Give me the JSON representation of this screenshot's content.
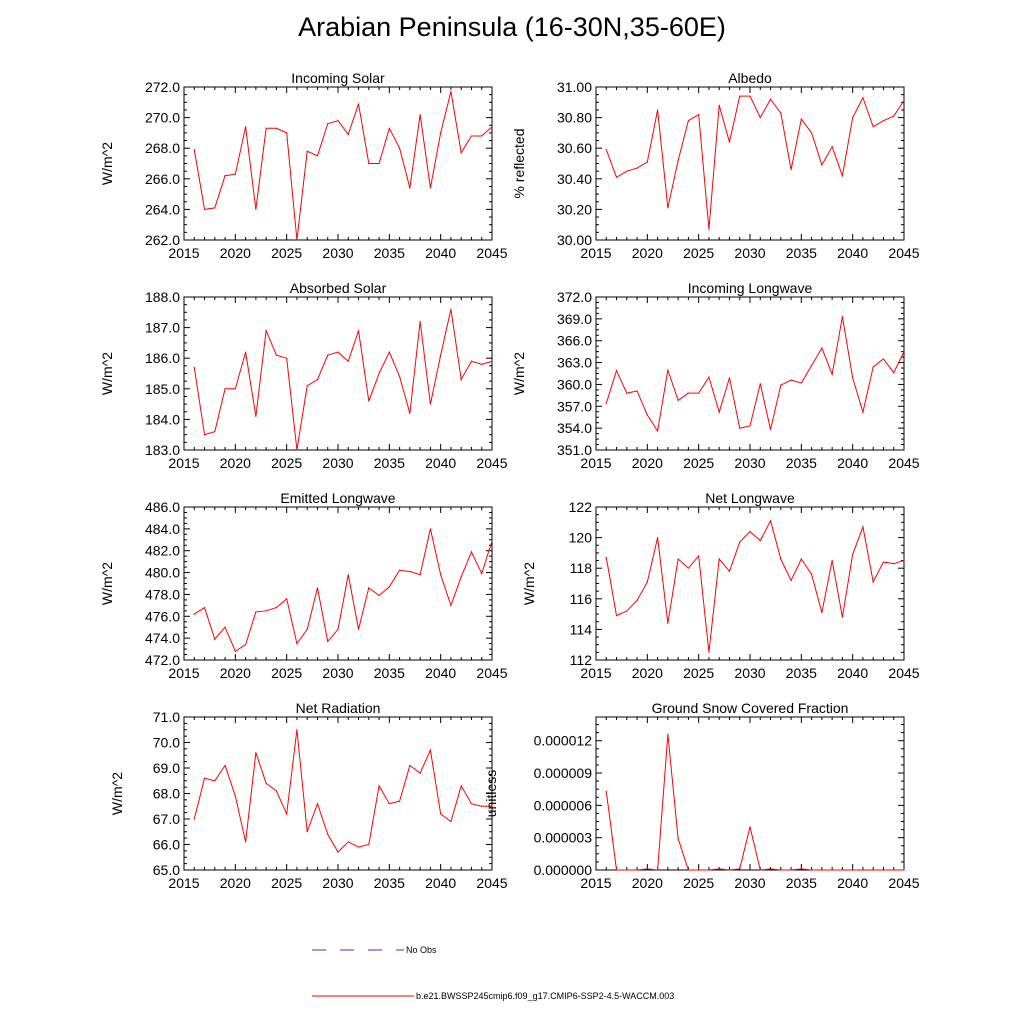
{
  "title": "Arabian Peninsula (16-30N,35-60E)",
  "colors": {
    "model": "#ff0000",
    "obs": "#3333cc",
    "axis": "#000000"
  },
  "legend": {
    "obs_label": "No Obs",
    "model_label": "b.e21.BWSSP245cmip6.f09_g17.CMIP6-SSP2-4.5-WACCM.003"
  },
  "chart_data": [
    {
      "type": "line",
      "title": "Incoming Solar",
      "xlabel": "",
      "ylabel": "W/m^2",
      "xlim": [
        2015,
        2045
      ],
      "ylim": [
        262,
        272
      ],
      "xticks": [
        2015,
        2020,
        2025,
        2030,
        2035,
        2040,
        2045
      ],
      "yticks": [
        262,
        264,
        266,
        268,
        270,
        272
      ],
      "ytick_labels": [
        "262.0",
        "264.0",
        "266.0",
        "268.0",
        "270.0",
        "272.0"
      ],
      "x": [
        2016,
        2017,
        2018,
        2019,
        2020,
        2021,
        2022,
        2023,
        2024,
        2025,
        2026,
        2027,
        2028,
        2029,
        2030,
        2031,
        2032,
        2033,
        2034,
        2035,
        2036,
        2037,
        2038,
        2039,
        2040,
        2041,
        2042,
        2043,
        2044,
        2045
      ],
      "series": [
        {
          "name": "b.e21.BWSSP245cmip6.f09_g17.CMIP6-SSP2-4.5-WACCM.003",
          "values": [
            267.9,
            264.0,
            264.1,
            266.2,
            266.3,
            269.4,
            264.0,
            269.3,
            269.3,
            269.0,
            262.0,
            267.8,
            267.5,
            269.6,
            269.8,
            268.9,
            270.9,
            267.0,
            267.0,
            269.3,
            268.0,
            265.4,
            270.2,
            265.4,
            269.0,
            271.7,
            267.7,
            268.8,
            268.8,
            269.4
          ]
        }
      ]
    },
    {
      "type": "line",
      "title": "Albedo",
      "xlabel": "",
      "ylabel": "% reflected",
      "xlim": [
        2015,
        2045
      ],
      "ylim": [
        30.0,
        31.0
      ],
      "xticks": [
        2015,
        2020,
        2025,
        2030,
        2035,
        2040,
        2045
      ],
      "yticks": [
        30.0,
        30.2,
        30.4,
        30.6,
        30.8,
        31.0
      ],
      "ytick_labels": [
        "30.00",
        "30.20",
        "30.40",
        "30.60",
        "30.80",
        "31.00"
      ],
      "x": [
        2016,
        2017,
        2018,
        2019,
        2020,
        2021,
        2022,
        2023,
        2024,
        2025,
        2026,
        2027,
        2028,
        2029,
        2030,
        2031,
        2032,
        2033,
        2034,
        2035,
        2036,
        2037,
        2038,
        2039,
        2040,
        2041,
        2042,
        2043,
        2044,
        2045
      ],
      "series": [
        {
          "name": "b.e21.BWSSP245cmip6.f09_g17.CMIP6-SSP2-4.5-WACCM.003",
          "values": [
            30.59,
            30.41,
            30.45,
            30.47,
            30.51,
            30.85,
            30.21,
            30.52,
            30.78,
            30.82,
            30.07,
            30.88,
            30.64,
            30.94,
            30.94,
            30.8,
            30.92,
            30.83,
            30.46,
            30.79,
            30.7,
            30.49,
            30.61,
            30.42,
            30.8,
            30.93,
            30.74,
            30.78,
            30.81,
            30.91
          ]
        }
      ]
    },
    {
      "type": "line",
      "title": "Absorbed Solar",
      "xlabel": "",
      "ylabel": "W/m^2",
      "xlim": [
        2015,
        2045
      ],
      "ylim": [
        183,
        188
      ],
      "xticks": [
        2015,
        2020,
        2025,
        2030,
        2035,
        2040,
        2045
      ],
      "yticks": [
        183,
        184,
        185,
        186,
        187,
        188
      ],
      "ytick_labels": [
        "183.0",
        "184.0",
        "185.0",
        "186.0",
        "187.0",
        "188.0"
      ],
      "x": [
        2016,
        2017,
        2018,
        2019,
        2020,
        2021,
        2022,
        2023,
        2024,
        2025,
        2026,
        2027,
        2028,
        2029,
        2030,
        2031,
        2032,
        2033,
        2034,
        2035,
        2036,
        2037,
        2038,
        2039,
        2040,
        2041,
        2042,
        2043,
        2044,
        2045
      ],
      "series": [
        {
          "name": "b.e21.BWSSP245cmip6.f09_g17.CMIP6-SSP2-4.5-WACCM.003",
          "values": [
            185.7,
            183.5,
            183.6,
            185.0,
            185.0,
            186.2,
            184.1,
            186.9,
            186.1,
            186.0,
            183.0,
            185.1,
            185.3,
            186.1,
            186.2,
            185.9,
            186.9,
            184.6,
            185.5,
            186.2,
            185.4,
            184.2,
            187.2,
            184.5,
            186.1,
            187.6,
            185.3,
            185.9,
            185.8,
            185.9
          ]
        }
      ]
    },
    {
      "type": "line",
      "title": "Incoming Longwave",
      "xlabel": "",
      "ylabel": "W/m^2",
      "xlim": [
        2015,
        2045
      ],
      "ylim": [
        351,
        372
      ],
      "xticks": [
        2015,
        2020,
        2025,
        2030,
        2035,
        2040,
        2045
      ],
      "yticks": [
        351,
        354,
        357,
        360,
        363,
        366,
        369,
        372
      ],
      "ytick_labels": [
        "351.0",
        "354.0",
        "357.0",
        "360.0",
        "363.0",
        "366.0",
        "369.0",
        "372.0"
      ],
      "x": [
        2016,
        2017,
        2018,
        2019,
        2020,
        2021,
        2022,
        2023,
        2024,
        2025,
        2026,
        2027,
        2028,
        2029,
        2030,
        2031,
        2032,
        2033,
        2034,
        2035,
        2036,
        2037,
        2038,
        2039,
        2040,
        2041,
        2042,
        2043,
        2044,
        2045
      ],
      "series": [
        {
          "name": "b.e21.BWSSP245cmip6.f09_g17.CMIP6-SSP2-4.5-WACCM.003",
          "values": [
            357.4,
            361.9,
            358.8,
            359.1,
            355.8,
            353.6,
            362.0,
            357.8,
            358.8,
            358.8,
            361.0,
            356.2,
            360.9,
            354.0,
            354.3,
            360.1,
            353.8,
            359.9,
            360.6,
            360.2,
            362.6,
            365.0,
            361.4,
            369.3,
            360.9,
            356.2,
            362.4,
            363.5,
            361.6,
            364.5
          ]
        }
      ]
    },
    {
      "type": "line",
      "title": "Emitted Longwave",
      "xlabel": "",
      "ylabel": "W/m^2",
      "xlim": [
        2015,
        2045
      ],
      "ylim": [
        472,
        486
      ],
      "xticks": [
        2015,
        2020,
        2025,
        2030,
        2035,
        2040,
        2045
      ],
      "yticks": [
        472,
        474,
        476,
        478,
        480,
        482,
        484,
        486
      ],
      "ytick_labels": [
        "472.0",
        "474.0",
        "476.0",
        "478.0",
        "480.0",
        "482.0",
        "484.0",
        "486.0"
      ],
      "x": [
        2016,
        2017,
        2018,
        2019,
        2020,
        2021,
        2022,
        2023,
        2024,
        2025,
        2026,
        2027,
        2028,
        2029,
        2030,
        2031,
        2032,
        2033,
        2034,
        2035,
        2036,
        2037,
        2038,
        2039,
        2040,
        2041,
        2042,
        2043,
        2044,
        2045
      ],
      "series": [
        {
          "name": "b.e21.BWSSP245cmip6.f09_g17.CMIP6-SSP2-4.5-WACCM.003",
          "values": [
            476.2,
            476.8,
            473.9,
            475.0,
            472.8,
            473.4,
            476.4,
            476.5,
            476.8,
            477.6,
            473.5,
            474.8,
            478.6,
            473.7,
            474.8,
            479.8,
            474.8,
            478.6,
            477.9,
            478.7,
            480.2,
            480.1,
            479.8,
            484.0,
            479.8,
            477.0,
            479.6,
            481.9,
            479.9,
            482.9
          ]
        }
      ]
    },
    {
      "type": "line",
      "title": "Net Longwave",
      "xlabel": "",
      "ylabel": "W/m^2",
      "xlim": [
        2015,
        2045
      ],
      "ylim": [
        112,
        122
      ],
      "xticks": [
        2015,
        2020,
        2025,
        2030,
        2035,
        2040,
        2045
      ],
      "yticks": [
        112,
        114,
        116,
        118,
        120,
        122
      ],
      "ytick_labels": [
        "112",
        "114",
        "116",
        "118",
        "120",
        "122"
      ],
      "x": [
        2016,
        2017,
        2018,
        2019,
        2020,
        2021,
        2022,
        2023,
        2024,
        2025,
        2026,
        2027,
        2028,
        2029,
        2030,
        2031,
        2032,
        2033,
        2034,
        2035,
        2036,
        2037,
        2038,
        2039,
        2040,
        2041,
        2042,
        2043,
        2044,
        2045
      ],
      "series": [
        {
          "name": "b.e21.BWSSP245cmip6.f09_g17.CMIP6-SSP2-4.5-WACCM.003",
          "values": [
            118.7,
            114.9,
            115.2,
            115.9,
            117.1,
            120.0,
            114.4,
            118.6,
            118.0,
            118.8,
            112.5,
            118.6,
            117.8,
            119.7,
            120.4,
            119.8,
            121.1,
            118.6,
            117.2,
            118.6,
            117.6,
            115.1,
            118.5,
            114.8,
            118.9,
            120.7,
            117.1,
            118.4,
            118.3,
            118.5
          ]
        }
      ]
    },
    {
      "type": "line",
      "title": "Net Radiation",
      "xlabel": "",
      "ylabel": "W/m^2",
      "xlim": [
        2015,
        2045
      ],
      "ylim": [
        65,
        71
      ],
      "xticks": [
        2015,
        2020,
        2025,
        2030,
        2035,
        2040,
        2045
      ],
      "yticks": [
        65,
        66,
        67,
        68,
        69,
        70,
        71
      ],
      "ytick_labels": [
        "65.0",
        "66.0",
        "67.0",
        "68.0",
        "69.0",
        "70.0",
        "71.0"
      ],
      "x": [
        2016,
        2017,
        2018,
        2019,
        2020,
        2021,
        2022,
        2023,
        2024,
        2025,
        2026,
        2027,
        2028,
        2029,
        2030,
        2031,
        2032,
        2033,
        2034,
        2035,
        2036,
        2037,
        2038,
        2039,
        2040,
        2041,
        2042,
        2043,
        2044,
        2045
      ],
      "series": [
        {
          "name": "b.e21.BWSSP245cmip6.f09_g17.CMIP6-SSP2-4.5-WACCM.003",
          "values": [
            67.0,
            68.6,
            68.5,
            69.1,
            67.9,
            66.1,
            69.6,
            68.4,
            68.1,
            67.2,
            70.5,
            66.5,
            67.6,
            66.4,
            65.7,
            66.1,
            65.9,
            66.0,
            68.3,
            67.6,
            67.7,
            69.1,
            68.8,
            69.7,
            67.2,
            66.9,
            68.3,
            67.6,
            67.5,
            67.5
          ]
        }
      ]
    },
    {
      "type": "line",
      "title": "Ground Snow Covered Fraction",
      "xlabel": "",
      "ylabel": "unitless",
      "xlim": [
        2015,
        2045
      ],
      "ylim": [
        0,
        1.42e-05
      ],
      "xticks": [
        2015,
        2020,
        2025,
        2030,
        2035,
        2040,
        2045
      ],
      "yticks": [
        0,
        3e-06,
        6e-06,
        9e-06,
        1.2e-05
      ],
      "ytick_labels": [
        "0.000000",
        "0.000003",
        "0.000006",
        "0.000009",
        "0.000012"
      ],
      "x": [
        2016,
        2017,
        2018,
        2019,
        2020,
        2021,
        2022,
        2023,
        2024,
        2025,
        2026,
        2027,
        2028,
        2029,
        2030,
        2031,
        2032,
        2033,
        2034,
        2035,
        2036,
        2037,
        2038,
        2039,
        2040,
        2041,
        2042,
        2043,
        2044,
        2045
      ],
      "series": [
        {
          "name": "b.e21.BWSSP245cmip6.f09_g17.CMIP6-SSP2-4.5-WACCM.003",
          "values": [
            7.3e-06,
            0,
            0,
            0,
            1e-07,
            0,
            1.26e-05,
            2.9e-06,
            0,
            0,
            0,
            1e-07,
            0,
            1e-07,
            4e-06,
            0,
            1e-07,
            0,
            0,
            1e-07,
            0,
            0,
            0,
            0,
            0,
            0,
            0,
            0,
            0,
            0
          ]
        }
      ]
    }
  ]
}
